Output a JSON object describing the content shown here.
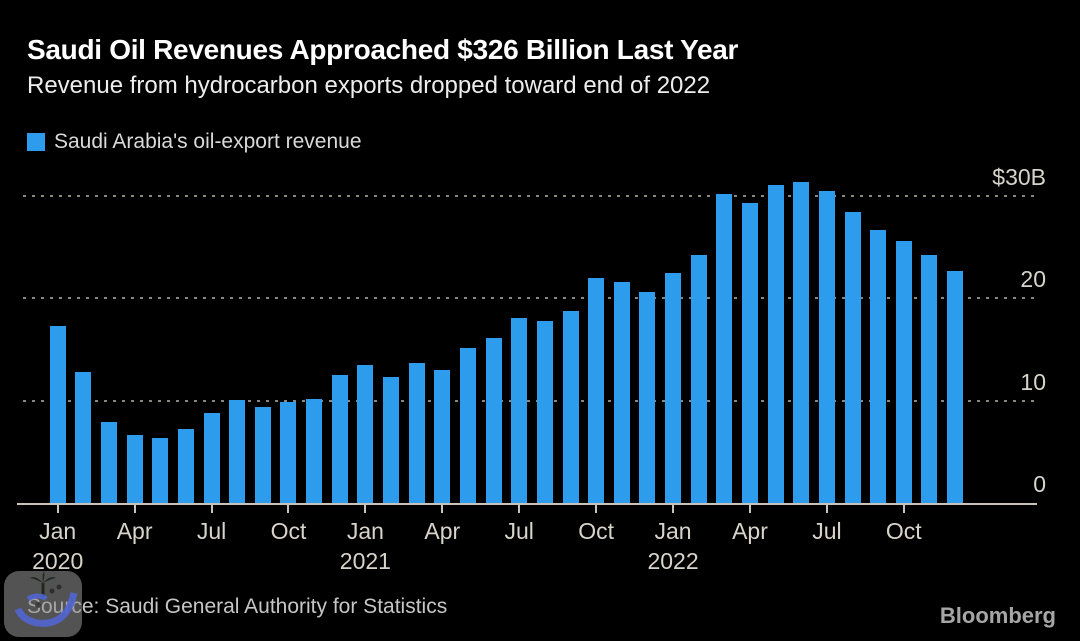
{
  "header": {
    "title": "Saudi Oil Revenues Approached $326 Billion Last Year",
    "subtitle": "Revenue from hydrocarbon exports dropped toward end of 2022"
  },
  "legend": {
    "label": "Saudi Arabia's oil-export revenue",
    "swatch_color": "#2d9cec"
  },
  "chart_data": {
    "type": "bar",
    "title": "Saudi Oil Revenues Approached $326 Billion Last Year",
    "subtitle": "Revenue from hydrocarbon exports dropped toward end of 2022",
    "series_name": "Saudi Arabia's oil-export revenue",
    "unit": "billion USD per month",
    "categories": [
      "Jan 2020",
      "Feb 2020",
      "Mar 2020",
      "Apr 2020",
      "May 2020",
      "Jun 2020",
      "Jul 2020",
      "Aug 2020",
      "Sep 2020",
      "Oct 2020",
      "Nov 2020",
      "Dec 2020",
      "Jan 2021",
      "Feb 2021",
      "Mar 2021",
      "Apr 2021",
      "May 2021",
      "Jun 2021",
      "Jul 2021",
      "Aug 2021",
      "Sep 2021",
      "Oct 2021",
      "Nov 2021",
      "Dec 2021",
      "Jan 2022",
      "Feb 2022",
      "Mar 2022",
      "Apr 2022",
      "May 2022",
      "Jun 2022",
      "Jul 2022",
      "Aug 2022",
      "Sep 2022",
      "Oct 2022",
      "Nov 2022",
      "Dec 2022"
    ],
    "values": [
      17.3,
      12.8,
      7.9,
      6.6,
      6.4,
      7.2,
      8.8,
      10.1,
      9.4,
      9.9,
      10.2,
      12.5,
      13.5,
      12.3,
      13.7,
      13.0,
      15.1,
      16.1,
      18.1,
      17.8,
      18.8,
      22.0,
      21.6,
      20.6,
      22.5,
      24.2,
      30.2,
      29.3,
      31.1,
      31.4,
      30.5,
      28.4,
      26.7,
      25.6,
      24.2,
      22.7
    ],
    "ylim": [
      0,
      32
    ],
    "yticks": [
      {
        "value": 0,
        "label": "0"
      },
      {
        "value": 10,
        "label": "10"
      },
      {
        "value": 20,
        "label": "20"
      },
      {
        "value": 30,
        "label": "$30B"
      }
    ],
    "xticks": [
      {
        "index": 0,
        "label": "Jan",
        "year": "2020"
      },
      {
        "index": 3,
        "label": "Apr"
      },
      {
        "index": 6,
        "label": "Jul"
      },
      {
        "index": 9,
        "label": "Oct"
      },
      {
        "index": 12,
        "label": "Jan",
        "year": "2021"
      },
      {
        "index": 15,
        "label": "Apr"
      },
      {
        "index": 18,
        "label": "Jul"
      },
      {
        "index": 21,
        "label": "Oct"
      },
      {
        "index": 24,
        "label": "Jan",
        "year": "2022"
      },
      {
        "index": 27,
        "label": "Apr"
      },
      {
        "index": 30,
        "label": "Jul"
      },
      {
        "index": 33,
        "label": "Oct"
      }
    ],
    "bar_color": "#2d9cec",
    "background_color": "#000000",
    "grid": "horizontal-dotted",
    "legend_position": "top-left",
    "y_axis_side": "right"
  },
  "footer": {
    "source": "Source: Saudi General Authority for Statistics",
    "brand": "Bloomberg"
  }
}
